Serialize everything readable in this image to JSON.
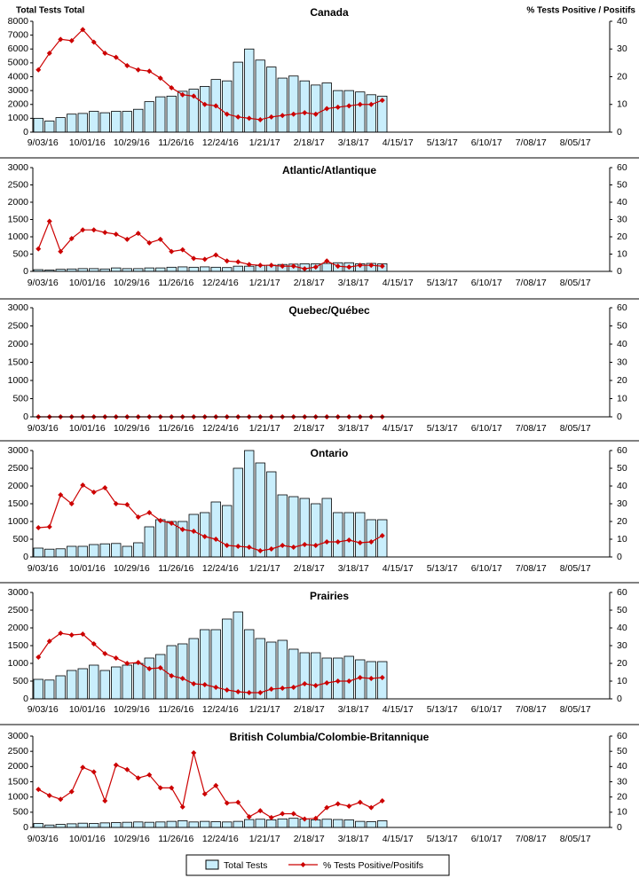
{
  "chart_data": [
    {
      "type": "bar",
      "title": "Canada",
      "y_label": "Total  Tests  Total",
      "y2_label": "% Tests Positive / Positifs",
      "categories": [
        "9/03/16",
        null,
        null,
        null,
        "10/01/16",
        null,
        null,
        null,
        "10/29/16",
        null,
        null,
        null,
        "11/26/16",
        null,
        null,
        null,
        "12/24/16",
        null,
        null,
        null,
        "1/21/17",
        null,
        null,
        null,
        "2/18/17",
        null,
        null,
        null,
        "3/18/17",
        null,
        null,
        null,
        "4/15/17",
        null,
        null,
        null,
        "5/13/17",
        null,
        null,
        null,
        "6/10/17",
        null,
        null,
        null,
        "7/08/17",
        null,
        null,
        null,
        "8/05/17",
        null,
        null,
        null
      ],
      "series": [
        {
          "name": "Total Tests",
          "type": "bar",
          "color": "#c9eefc",
          "values": [
            1000,
            800,
            1050,
            1300,
            1350,
            1500,
            1400,
            1500,
            1500,
            1650,
            2200,
            2550,
            2600,
            2950,
            3100,
            3300,
            3800,
            3700,
            5050,
            6000,
            5200,
            4700,
            3900,
            4050,
            3700,
            3400,
            3550,
            3000,
            3000,
            2900,
            2700,
            2600,
            null,
            null,
            null,
            null,
            null,
            null,
            null,
            null,
            null,
            null,
            null,
            null,
            null,
            null,
            null,
            null,
            null,
            null,
            null,
            null
          ]
        },
        {
          "name": "% Tests Positive/Positifs",
          "type": "line",
          "axis": "y2",
          "color": "#cc0000",
          "values": [
            22.5,
            28.5,
            33.5,
            33,
            37,
            32.5,
            28.5,
            27,
            24,
            22.5,
            22,
            19.5,
            16,
            13.5,
            13,
            10,
            9.5,
            6.5,
            5.5,
            5,
            4.5,
            5.5,
            6,
            6.5,
            7,
            6.5,
            8.5,
            9,
            9.5,
            10,
            10,
            11.5,
            null,
            null,
            null,
            null,
            null,
            null,
            null,
            null,
            null,
            null,
            null,
            null,
            null,
            null,
            null,
            null,
            null,
            null,
            null,
            null
          ]
        }
      ],
      "ylim": [
        0,
        8000
      ],
      "yticks": [
        0,
        1000,
        2000,
        3000,
        4000,
        5000,
        6000,
        7000,
        8000
      ],
      "y2lim": [
        0,
        40
      ],
      "y2ticks": [
        0,
        10,
        20,
        30,
        40
      ]
    },
    {
      "type": "bar",
      "title": "Atlantic/Atlantique",
      "categories": [
        "9/03/16",
        null,
        null,
        null,
        "10/01/16",
        null,
        null,
        null,
        "10/29/16",
        null,
        null,
        null,
        "11/26/16",
        null,
        null,
        null,
        "12/24/16",
        null,
        null,
        null,
        "1/21/17",
        null,
        null,
        null,
        "2/18/17",
        null,
        null,
        null,
        "3/18/17",
        null,
        null,
        null,
        "4/15/17",
        null,
        null,
        null,
        "5/13/17",
        null,
        null,
        null,
        "6/10/17",
        null,
        null,
        null,
        "7/08/17",
        null,
        null,
        null,
        "8/05/17",
        null,
        null,
        null
      ],
      "series": [
        {
          "type": "bar",
          "color": "#c9eefc",
          "values": [
            50,
            40,
            60,
            70,
            80,
            80,
            70,
            100,
            80,
            80,
            100,
            100,
            120,
            130,
            120,
            130,
            120,
            110,
            150,
            150,
            170,
            180,
            200,
            210,
            220,
            220,
            230,
            250,
            250,
            220,
            230,
            220,
            null,
            null,
            null,
            null,
            null,
            null,
            null,
            null,
            null,
            null,
            null,
            null,
            null,
            null,
            null,
            null,
            null,
            null,
            null,
            null
          ]
        },
        {
          "type": "line",
          "axis": "y2",
          "color": "#cc0000",
          "values": [
            13,
            29,
            11.5,
            19,
            24,
            24,
            22.5,
            21.5,
            18.5,
            22,
            16.5,
            18.5,
            11.5,
            12.5,
            7.5,
            7,
            9.5,
            6,
            5.5,
            4,
            3.5,
            3.5,
            3,
            3,
            1.5,
            2.5,
            6,
            3,
            2.5,
            3.5,
            3.5,
            3,
            null,
            null,
            null,
            null,
            null,
            null,
            null,
            null,
            null,
            null,
            null,
            null,
            null,
            null,
            null,
            null,
            null,
            null,
            null,
            null
          ]
        }
      ],
      "ylim": [
        0,
        3000
      ],
      "yticks": [
        0,
        500,
        1000,
        1500,
        2000,
        2500,
        3000
      ],
      "y2lim": [
        0,
        60
      ],
      "y2ticks": [
        0,
        10,
        20,
        30,
        40,
        50,
        60
      ]
    },
    {
      "type": "bar",
      "title": "Quebec/Québec",
      "categories": [
        "9/03/16",
        null,
        null,
        null,
        "10/01/16",
        null,
        null,
        null,
        "10/29/16",
        null,
        null,
        null,
        "11/26/16",
        null,
        null,
        null,
        "12/24/16",
        null,
        null,
        null,
        "1/21/17",
        null,
        null,
        null,
        "2/18/17",
        null,
        null,
        null,
        "3/18/17",
        null,
        null,
        null,
        "4/15/17",
        null,
        null,
        null,
        "5/13/17",
        null,
        null,
        null,
        "6/10/17",
        null,
        null,
        null,
        "7/08/17",
        null,
        null,
        null,
        "8/05/17",
        null,
        null,
        null
      ],
      "series": [
        {
          "type": "bar",
          "color": "#c9eefc",
          "values": [
            0,
            0,
            0,
            0,
            0,
            0,
            0,
            0,
            0,
            0,
            0,
            0,
            0,
            0,
            0,
            0,
            0,
            0,
            0,
            0,
            0,
            0,
            0,
            0,
            0,
            0,
            0,
            0,
            0,
            0,
            0,
            0,
            null,
            null,
            null,
            null,
            null,
            null,
            null,
            null,
            null,
            null,
            null,
            null,
            null,
            null,
            null,
            null,
            null,
            null,
            null,
            null
          ]
        },
        {
          "type": "line",
          "axis": "y2",
          "color": "#cc0000",
          "values": [
            0,
            0,
            0,
            0,
            0,
            0,
            0,
            0,
            0,
            0,
            0,
            0,
            0,
            0,
            0,
            0,
            0,
            0,
            0,
            0,
            0,
            0,
            0,
            0,
            0,
            0,
            0,
            0,
            0,
            0,
            0,
            0,
            null,
            null,
            null,
            null,
            null,
            null,
            null,
            null,
            null,
            null,
            null,
            null,
            null,
            null,
            null,
            null,
            null,
            null,
            null,
            null
          ]
        }
      ],
      "ylim": [
        0,
        3000
      ],
      "yticks": [
        0,
        500,
        1000,
        1500,
        2000,
        2500,
        3000
      ],
      "y2lim": [
        0,
        60
      ],
      "y2ticks": [
        0,
        10,
        20,
        30,
        40,
        50,
        60
      ]
    },
    {
      "type": "bar",
      "title": "Ontario",
      "categories": [
        "9/03/16",
        null,
        null,
        null,
        "10/01/16",
        null,
        null,
        null,
        "10/29/16",
        null,
        null,
        null,
        "11/26/16",
        null,
        null,
        null,
        "12/24/16",
        null,
        null,
        null,
        "1/21/17",
        null,
        null,
        null,
        "2/18/17",
        null,
        null,
        null,
        "3/18/17",
        null,
        null,
        null,
        "4/15/17",
        null,
        null,
        null,
        "5/13/17",
        null,
        null,
        null,
        "6/10/17",
        null,
        null,
        null,
        "7/08/17",
        null,
        null,
        null,
        "8/05/17",
        null,
        null,
        null
      ],
      "series": [
        {
          "type": "bar",
          "color": "#c9eefc",
          "values": [
            250,
            220,
            230,
            300,
            300,
            350,
            370,
            380,
            300,
            400,
            850,
            1050,
            1000,
            1000,
            1200,
            1250,
            1550,
            1450,
            2500,
            3000,
            2650,
            2400,
            1750,
            1700,
            1650,
            1500,
            1650,
            1250,
            1250,
            1250,
            1050,
            1050,
            null,
            null,
            null,
            null,
            null,
            null,
            null,
            null,
            null,
            null,
            null,
            null,
            null,
            null,
            null,
            null,
            null,
            null,
            null,
            null
          ]
        },
        {
          "type": "line",
          "axis": "y2",
          "color": "#cc0000",
          "values": [
            16.5,
            17,
            35,
            30,
            40.5,
            36.5,
            39,
            30,
            29.5,
            22.5,
            25,
            20.5,
            19,
            15.5,
            14.5,
            11.5,
            10,
            6.5,
            6,
            5.5,
            3.5,
            4.5,
            6.5,
            5.5,
            7,
            6.5,
            8.5,
            8.5,
            9.5,
            8,
            8.5,
            12,
            null,
            null,
            null,
            null,
            null,
            null,
            null,
            null,
            null,
            null,
            null,
            null,
            null,
            null,
            null,
            null,
            null,
            null,
            null,
            null
          ]
        }
      ],
      "ylim": [
        0,
        3000
      ],
      "yticks": [
        0,
        500,
        1000,
        1500,
        2000,
        2500,
        3000
      ],
      "y2lim": [
        0,
        60
      ],
      "y2ticks": [
        0,
        10,
        20,
        30,
        40,
        50,
        60
      ]
    },
    {
      "type": "bar",
      "title": "Prairies",
      "categories": [
        "9/03/16",
        null,
        null,
        null,
        "10/01/16",
        null,
        null,
        null,
        "10/29/16",
        null,
        null,
        null,
        "11/26/16",
        null,
        null,
        null,
        "12/24/16",
        null,
        null,
        null,
        "1/21/17",
        null,
        null,
        null,
        "2/18/17",
        null,
        null,
        null,
        "3/18/17",
        null,
        null,
        null,
        "4/15/17",
        null,
        null,
        null,
        "5/13/17",
        null,
        null,
        null,
        "6/10/17",
        null,
        null,
        null,
        "7/08/17",
        null,
        null,
        null,
        "8/05/17",
        null,
        null,
        null
      ],
      "series": [
        {
          "type": "bar",
          "color": "#c9eefc",
          "values": [
            550,
            530,
            650,
            800,
            850,
            950,
            800,
            900,
            950,
            1000,
            1150,
            1250,
            1500,
            1550,
            1700,
            1950,
            1950,
            2250,
            2450,
            1950,
            1700,
            1600,
            1650,
            1400,
            1300,
            1300,
            1150,
            1150,
            1200,
            1100,
            1050,
            1050,
            null,
            null,
            null,
            null,
            null,
            null,
            null,
            null,
            null,
            null,
            null,
            null,
            null,
            null,
            null,
            null,
            null,
            null,
            null,
            null
          ]
        },
        {
          "type": "line",
          "axis": "y2",
          "color": "#cc0000",
          "values": [
            23.5,
            32.5,
            37,
            36,
            36.5,
            31,
            25.5,
            23,
            20,
            20.5,
            17,
            17.5,
            13,
            11.5,
            8.5,
            8,
            6.5,
            5,
            4,
            3.5,
            3.5,
            5.5,
            6,
            6.5,
            8.5,
            7.5,
            9,
            10,
            10,
            12,
            11.5,
            12,
            null,
            null,
            null,
            null,
            null,
            null,
            null,
            null,
            null,
            null,
            null,
            null,
            null,
            null,
            null,
            null,
            null,
            null,
            null,
            null
          ]
        }
      ],
      "ylim": [
        0,
        3000
      ],
      "yticks": [
        0,
        500,
        1000,
        1500,
        2000,
        2500,
        3000
      ],
      "y2lim": [
        0,
        60
      ],
      "y2ticks": [
        0,
        10,
        20,
        30,
        40,
        50,
        60
      ]
    },
    {
      "type": "bar",
      "title": "British  Columbia/Colombie-Britannique",
      "categories": [
        "9/03/16",
        null,
        null,
        null,
        "10/01/16",
        null,
        null,
        null,
        "10/29/16",
        null,
        null,
        null,
        "11/26/16",
        null,
        null,
        null,
        "12/24/16",
        null,
        null,
        null,
        "1/21/17",
        null,
        null,
        null,
        "2/18/17",
        null,
        null,
        null,
        "3/18/17",
        null,
        null,
        null,
        "4/15/17",
        null,
        null,
        null,
        "5/13/17",
        null,
        null,
        null,
        "6/10/17",
        null,
        null,
        null,
        "7/08/17",
        null,
        null,
        null,
        "8/05/17",
        null,
        null,
        null
      ],
      "series": [
        {
          "type": "bar",
          "color": "#c9eefc",
          "values": [
            130,
            80,
            100,
            120,
            140,
            130,
            150,
            160,
            170,
            180,
            170,
            180,
            200,
            220,
            180,
            200,
            190,
            180,
            200,
            260,
            270,
            250,
            280,
            300,
            280,
            250,
            270,
            260,
            250,
            200,
            190,
            220,
            null,
            null,
            null,
            null,
            null,
            null,
            null,
            null,
            null,
            null,
            null,
            null,
            null,
            null,
            null,
            null,
            null,
            null,
            null,
            null
          ]
        },
        {
          "type": "line",
          "axis": "y2",
          "color": "#cc0000",
          "values": [
            25,
            21,
            18.5,
            23.5,
            39.5,
            36.5,
            17.5,
            41,
            38,
            32.5,
            34.5,
            26,
            26,
            13.5,
            49,
            22,
            27.5,
            16,
            16.5,
            7,
            11,
            6.5,
            9,
            9,
            5.5,
            6,
            13,
            15.5,
            14,
            16.5,
            13,
            17.5,
            null,
            null,
            null,
            null,
            null,
            null,
            null,
            null,
            null,
            null,
            null,
            null,
            null,
            null,
            null,
            null,
            null,
            null,
            null,
            null
          ]
        }
      ],
      "ylim": [
        0,
        3000
      ],
      "yticks": [
        0,
        500,
        1000,
        1500,
        2000,
        2500,
        3000
      ],
      "y2lim": [
        0,
        60
      ],
      "y2ticks": [
        0,
        10,
        20,
        30,
        40,
        50,
        60
      ]
    }
  ]
}
